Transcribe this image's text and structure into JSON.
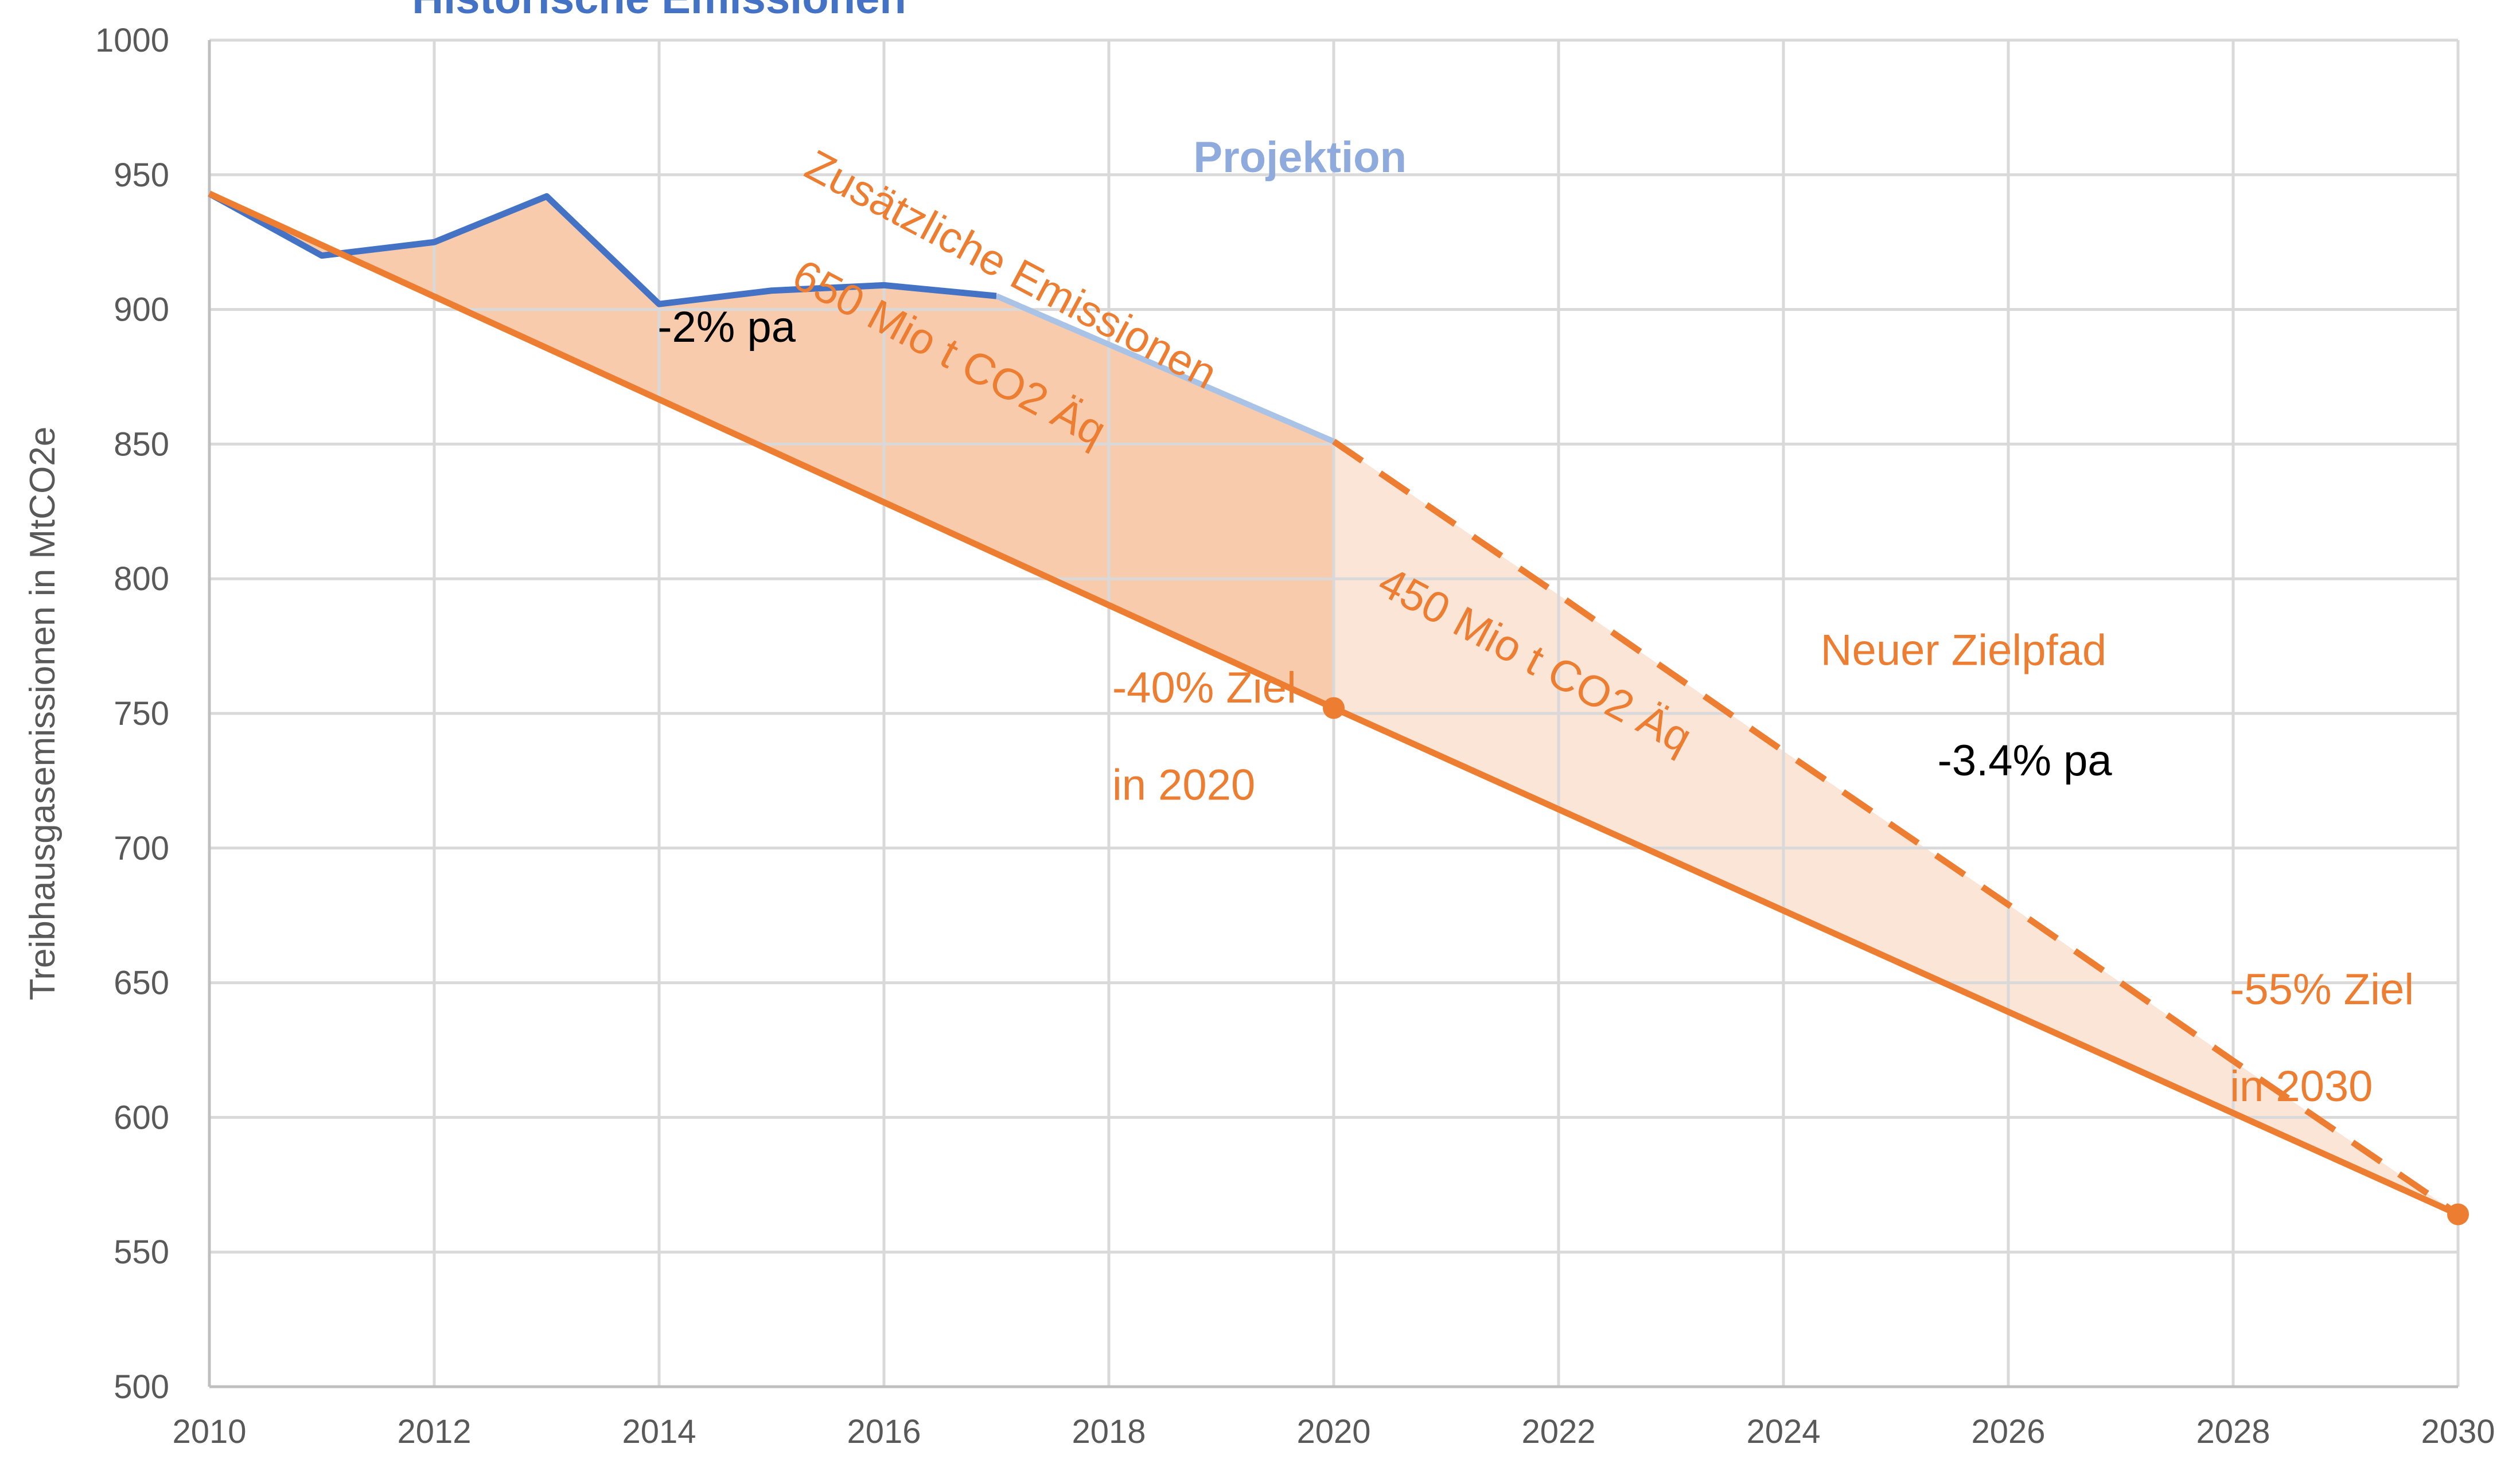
{
  "chart_data": {
    "type": "line",
    "ylabel": "Treibhausgasemissionen in MtCO2e",
    "xlabel": "",
    "xlim": [
      2010,
      2030
    ],
    "ylim": [
      500,
      1000
    ],
    "x_ticks": [
      2010,
      2012,
      2014,
      2016,
      2018,
      2020,
      2022,
      2024,
      2026,
      2028,
      2030
    ],
    "y_ticks": [
      500,
      550,
      600,
      650,
      700,
      750,
      800,
      850,
      900,
      950,
      1000
    ],
    "grid": true,
    "colors": {
      "historic": "#4472c4",
      "projection": "#a9c3e6",
      "target": "#ed7d31",
      "area_dark": "#f8cbad",
      "area_light": "#fbe5d6"
    },
    "series": [
      {
        "name": "Historische Emissionen",
        "style": "solid",
        "x": [
          2010,
          2011,
          2012,
          2013,
          2014,
          2015,
          2016,
          2017
        ],
        "y": [
          943,
          920,
          925,
          942,
          902,
          907,
          909,
          905
        ]
      },
      {
        "name": "Projektion",
        "style": "solid",
        "x": [
          2017,
          2020
        ],
        "y": [
          905,
          851
        ]
      },
      {
        "name": "-2% pa",
        "style": "solid",
        "x": [
          2010,
          2020,
          2030
        ],
        "y": [
          943,
          752,
          564
        ],
        "markers": [
          2020,
          2030
        ]
      },
      {
        "name": "Neuer Zielpfad",
        "style": "dashed",
        "x": [
          2020,
          2022,
          2024,
          2026,
          2028,
          2030
        ],
        "y": [
          851,
          794,
          736,
          679,
          621,
          564
        ]
      }
    ],
    "annotations": [
      {
        "id": "historic",
        "text": "Historische Emissionen",
        "x": 2014.0,
        "y": 1010.0,
        "color": "#4472c4",
        "bold": true,
        "anchor": "middle",
        "rotate": 0
      },
      {
        "id": "projection",
        "text": "Projektion",
        "x": 2019.7,
        "y": 951,
        "color": "#8faadc",
        "bold": true,
        "anchor": "middle",
        "rotate": 0
      },
      {
        "id": "rate2",
        "text": "-2% pa",
        "x": 2014.6,
        "y": 888,
        "color": "#000000",
        "bold": false,
        "anchor": "middle",
        "rotate": 0
      },
      {
        "id": "add1",
        "text": "Zusätzliche Emissionen",
        "x": 2017.07,
        "y": 910,
        "color": "#ed7d31",
        "bold": false,
        "anchor": "middle",
        "rotate": 28
      },
      {
        "id": "add2",
        "text": "650 Mio t CO2 Äq",
        "x": 2016.52,
        "y": 879,
        "color": "#ed7d31",
        "bold": false,
        "anchor": "middle",
        "rotate": 28
      },
      {
        "id": "add3",
        "text": "450 Mio t CO2 Äq",
        "x": 2021.73,
        "y": 765,
        "color": "#ed7d31",
        "bold": false,
        "anchor": "middle",
        "rotate": 28
      },
      {
        "id": "t2020a",
        "text": "-40% Ziel",
        "x": 2018.03,
        "y": 754,
        "color": "#ed7d31",
        "bold": false,
        "anchor": "start",
        "rotate": 0
      },
      {
        "id": "t2020b",
        "text": "in 2020",
        "x": 2018.03,
        "y": 718,
        "color": "#ed7d31",
        "bold": false,
        "anchor": "start",
        "rotate": 0
      },
      {
        "id": "newpath",
        "text": "Neuer Zielpfad",
        "x": 2024.33,
        "y": 768,
        "color": "#ed7d31",
        "bold": false,
        "anchor": "start",
        "rotate": 0
      },
      {
        "id": "rate34",
        "text": "-3.4% pa",
        "x": 2025.37,
        "y": 727,
        "color": "#000000",
        "bold": false,
        "anchor": "start",
        "rotate": 0
      },
      {
        "id": "t2030a",
        "text": "-55% Ziel",
        "x": 2027.97,
        "y": 642,
        "color": "#ed7d31",
        "bold": false,
        "anchor": "start",
        "rotate": 0
      },
      {
        "id": "t2030b",
        "text": "in 2030",
        "x": 2027.97,
        "y": 606,
        "color": "#ed7d31",
        "bold": false,
        "anchor": "start",
        "rotate": 0
      }
    ]
  }
}
